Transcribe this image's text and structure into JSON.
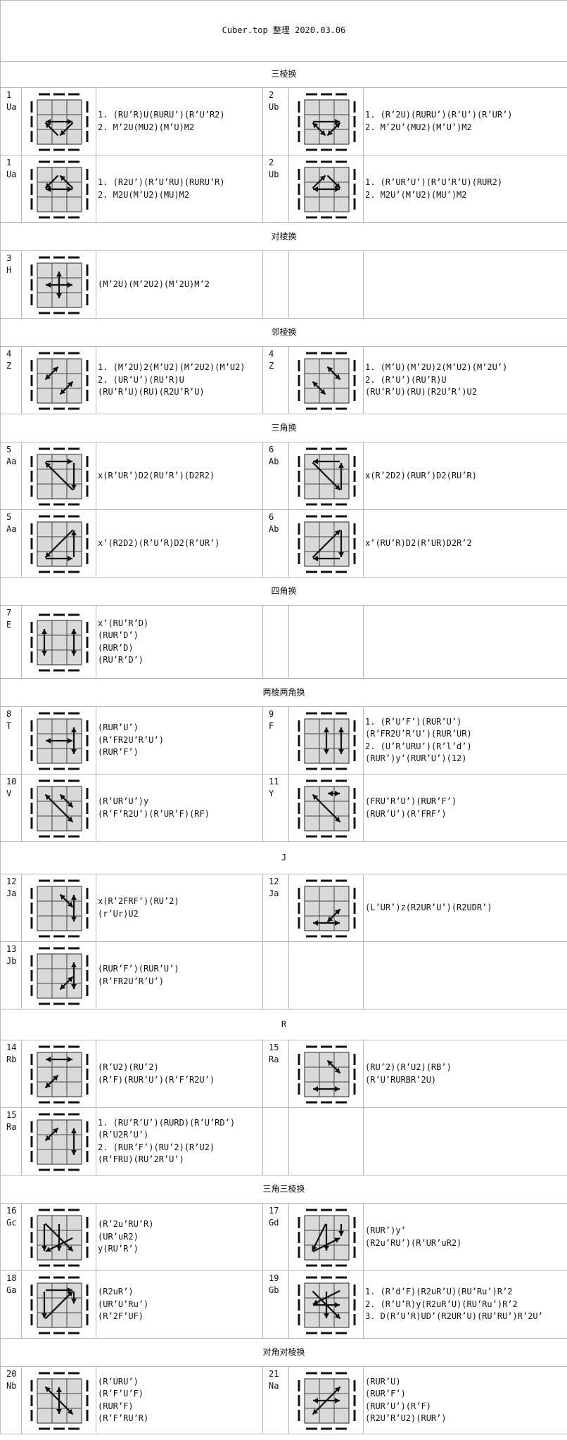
{
  "header": "Cuber.top 整理 2020.03.06",
  "rows": [
    {
      "type": "section",
      "title": "三棱换",
      "h": 37
    },
    {
      "type": "pair",
      "h": 96,
      "left": {
        "num": "1",
        "name": "Ua",
        "diagram": "ua1",
        "alg": [
          "1. (RU’R)U(RURU’)(R’U’R2)",
          "2. M’2U(MU2)(M’U)M2"
        ]
      },
      "right": {
        "num": "2",
        "name": "Ub",
        "diagram": "ub1",
        "alg": [
          "1. (R’2U)(RURU’)(R’U’)(R’UR’)",
          "2. M’2U’(MU2)(M’U’)M2"
        ]
      }
    },
    {
      "type": "pair",
      "h": 96,
      "left": {
        "num": "1",
        "name": "Ua",
        "diagram": "ua2",
        "alg": [
          "1. (R2U’)(R’U’RU)(RURU’R)",
          "2. M2U(M’U2)(MU)M2"
        ]
      },
      "right": {
        "num": "2",
        "name": "Ub",
        "diagram": "ub2",
        "alg": [
          "1. (R’UR’U’)(R’U’R’U)(RUR2)",
          "2. M2U’(M’U2)(MU’)M2"
        ]
      }
    },
    {
      "type": "section",
      "title": "对棱换",
      "h": 40
    },
    {
      "type": "pair",
      "h": 96,
      "left": {
        "num": "3",
        "name": "H",
        "diagram": "h",
        "alg": [
          "(M’2U)(M’2U2)(M’2U)M’2"
        ]
      },
      "right": null
    },
    {
      "type": "section",
      "title": "邻棱换",
      "h": 40
    },
    {
      "type": "pair",
      "h": 96,
      "left": {
        "num": "4",
        "name": "Z",
        "diagram": "z1",
        "alg": [
          "1. (M’2U)2(M’U2)(M’2U2)(M’U2)",
          "2. (UR’U’)(RU’R)U",
          "(RU’R’U)(RU)(R2U’R’U)"
        ]
      },
      "right": {
        "num": "4",
        "name": "Z",
        "diagram": "z2",
        "alg": [
          "1. (M’U)(M’2U)2(M’U2)(M’2U’)",
          "2. (R’U’)(RU’R)U",
          "(RU’R’U)(RU)(R2U’R’)U2"
        ]
      }
    },
    {
      "type": "section",
      "title": "三角换",
      "h": 40
    },
    {
      "type": "pair",
      "h": 96,
      "left": {
        "num": "5",
        "name": "Aa",
        "diagram": "aa1",
        "alg": [
          "x(R’UR’)D2(RU’R’)(D2R2)"
        ]
      },
      "right": {
        "num": "6",
        "name": "Ab",
        "diagram": "ab1",
        "alg": [
          "x(R’2D2)(RUR’)D2(RU’R)"
        ]
      }
    },
    {
      "type": "pair",
      "h": 96,
      "left": {
        "num": "5",
        "name": "Aa",
        "diagram": "aa2",
        "alg": [
          "x’(R2D2)(R’U’R)D2(R’UR’)"
        ]
      },
      "right": {
        "num": "6",
        "name": "Ab",
        "diagram": "ab2",
        "alg": [
          "x’(RU’R)D2(R’UR)D2R’2"
        ]
      }
    },
    {
      "type": "section",
      "title": "四角换",
      "h": 40
    },
    {
      "type": "pair",
      "h": 104,
      "left": {
        "num": "7",
        "name": "E",
        "diagram": "e",
        "alg": [
          "x’(RU’R’D)",
          "(RUR’D’)",
          "(RUR’D)",
          "(RU’R’D’)"
        ]
      },
      "right": null
    },
    {
      "type": "section",
      "title": "两棱两角换",
      "h": 40
    },
    {
      "type": "pair",
      "h": 96,
      "left": {
        "num": "8",
        "name": "T",
        "diagram": "t",
        "alg": [
          "(RUR’U’)",
          "(R’FR2U’R’U’)",
          "(RUR’F’)"
        ]
      },
      "right": {
        "num": "9",
        "name": "F",
        "diagram": "f",
        "alg": [
          "1. (R’U’F’)(RUR’U’)",
          "(R’FR2U’R’U’)(RUR’UR)",
          "2. (U’R’URU’)(R’l’d’)",
          "(RUR’)y’(RUR’U’)(12)"
        ]
      }
    },
    {
      "type": "pair",
      "h": 96,
      "left": {
        "num": "10",
        "name": "V",
        "diagram": "v",
        "alg": [
          "(R’UR’U’)y",
          "(R’F’R2U’)(R’UR’F)(RF)"
        ]
      },
      "right": {
        "num": "11",
        "name": "Y",
        "diagram": "y",
        "alg": [
          "(FRU’R’U’)(RUR’F’)",
          "(RUR’U’)(R’FRF’)"
        ]
      }
    },
    {
      "type": "section",
      "title": "J",
      "h": 46
    },
    {
      "type": "pair",
      "h": 96,
      "left": {
        "num": "12",
        "name": "Ja",
        "diagram": "ja1",
        "alg": [
          "x(R’2FRF’)(RU’2)",
          "(r’Ur)U2"
        ]
      },
      "right": {
        "num": "12",
        "name": "Ja",
        "diagram": "ja2",
        "alg": [
          "(L’UR’)z(R2UR’U’)(R2UDR’)"
        ]
      }
    },
    {
      "type": "pair",
      "h": 96,
      "left": {
        "num": "13",
        "name": "Jb",
        "diagram": "jb",
        "alg": [
          "(RUR’F’)(RUR’U’)",
          "(R’FR2U’R’U’)"
        ]
      },
      "right": null
    },
    {
      "type": "section",
      "title": "R",
      "h": 44
    },
    {
      "type": "pair",
      "h": 96,
      "left": {
        "num": "14",
        "name": "Rb",
        "diagram": "rb",
        "alg": [
          "(R’U2)(RU’2)",
          "(R’F)(RUR’U’)(R’F’R2U’)"
        ]
      },
      "right": {
        "num": "15",
        "name": "Ra",
        "diagram": "ra1",
        "alg": [
          "(RU’2)(R’U2)(RB’)",
          "(R’U’RURBR’2U)"
        ]
      }
    },
    {
      "type": "pair",
      "h": 96,
      "left": {
        "num": "15",
        "name": "Ra",
        "diagram": "ra2",
        "alg": [
          "1. (RU’R’U’)(RURD)(R’U’RD’)",
          "(R’U2R’U’)",
          "2. (RUR’F’)(RU’2)(R’U2)",
          "(R’FRU)(RU’2R’U’)"
        ]
      },
      "right": null
    },
    {
      "type": "section",
      "title": "三角三棱换",
      "h": 40
    },
    {
      "type": "pair",
      "h": 96,
      "left": {
        "num": "16",
        "name": "Gc",
        "diagram": "gc",
        "alg": [
          "(R’2u’RU’R)",
          "(UR’uR2)",
          "y(RU’R’)"
        ]
      },
      "right": {
        "num": "17",
        "name": "Gd",
        "diagram": "gd",
        "alg": [
          "(RUR’)y’",
          "(R2u’RU’)(R’UR’uR2)"
        ]
      }
    },
    {
      "type": "pair",
      "h": 96,
      "left": {
        "num": "18",
        "name": "Ga",
        "diagram": "ga",
        "alg": [
          "(R2uR’)",
          "(UR’U’Ru’)",
          "(R’2F’UF)"
        ]
      },
      "right": {
        "num": "19",
        "name": "Gb",
        "diagram": "gb",
        "alg": [
          "1. (R’d’F)(R2uR’U)(RU’Ru’)R’2",
          "2. (R’U’R)y(R2uR’U)(RU’Ru’)R’2",
          "3. D(R’U’R)UD’(R2UR’U)(RU’RU’)R’2U’"
        ]
      }
    },
    {
      "type": "section",
      "title": "对角对棱换",
      "h": 40
    },
    {
      "type": "pair",
      "h": 96,
      "left": {
        "num": "20",
        "name": "Nb",
        "diagram": "nb",
        "alg": [
          "(R’URU’)",
          "(R’F’U’F)",
          "(RUR’F)",
          "(R’F’RU’R)"
        ]
      },
      "right": {
        "num": "21",
        "name": "Na",
        "diagram": "na",
        "alg": [
          "(RUR’U)",
          "(RUR’F’)",
          "(RUR’U’)(R’F)",
          "(R2U’R’U2)(RUR’)"
        ]
      }
    }
  ]
}
